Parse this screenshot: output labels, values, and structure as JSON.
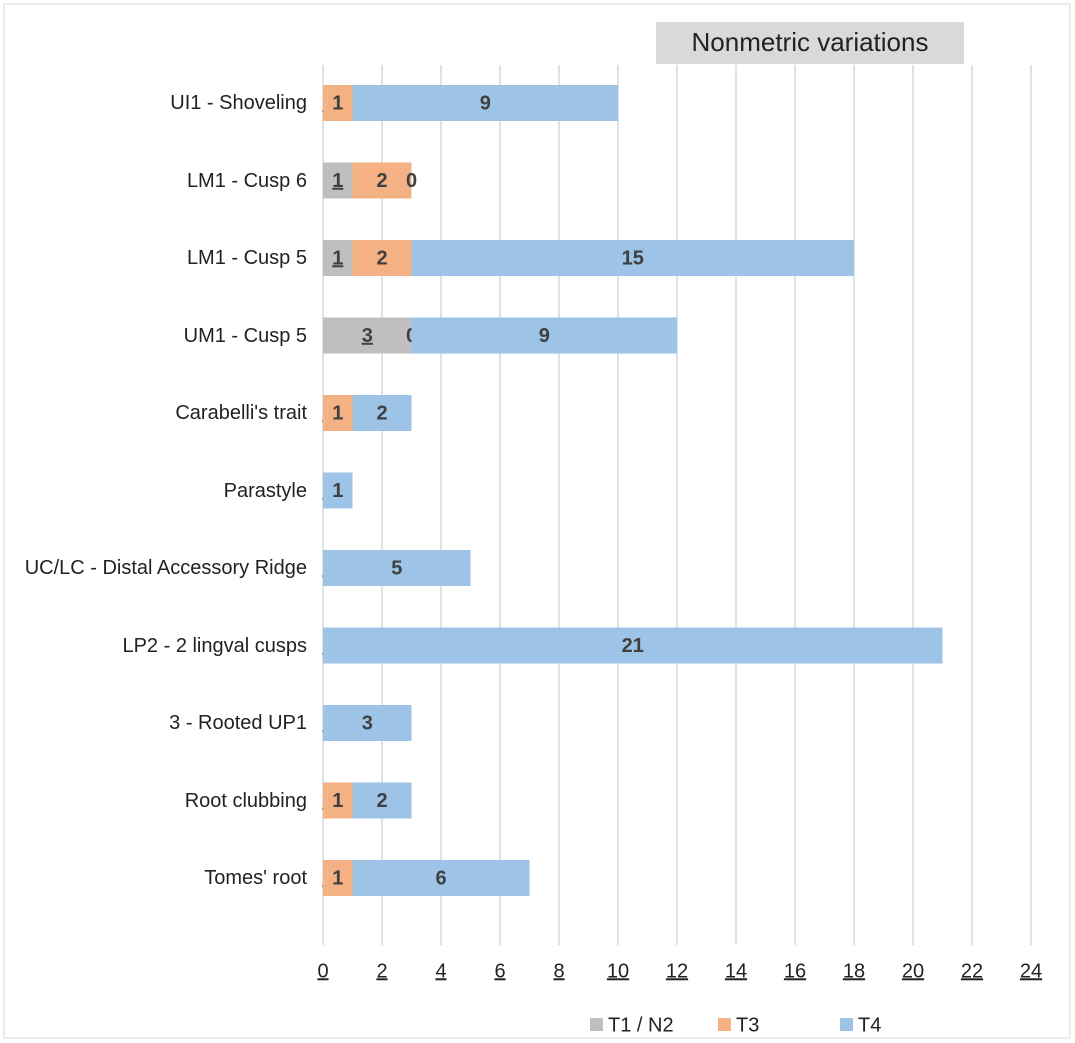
{
  "chart_data": {
    "type": "bar",
    "orientation": "horizontal",
    "stacked": true,
    "title": "Nonmetric variations",
    "categories": [
      "UI1 - Shoveling",
      "LM1 - Cusp 6",
      "LM1 - Cusp 5",
      "UM1 - Cusp 5",
      "Carabelli's trait",
      "Parastyle",
      "UC/LC - Distal Accessory Ridge",
      "LP2 -  2 lingval cusps",
      "3 - Rooted UP1",
      "Root clubbing",
      "Tomes' root"
    ],
    "series": [
      {
        "name": "T1 / N2",
        "color": "#bfbfbf",
        "values": [
          0,
          1,
          1,
          3,
          0,
          0,
          0,
          0,
          0,
          0,
          0
        ]
      },
      {
        "name": "T3",
        "color": "#f4b183",
        "values": [
          1,
          2,
          2,
          0,
          1,
          null,
          null,
          null,
          null,
          1,
          1
        ]
      },
      {
        "name": "T4",
        "color": "#9dc3e6",
        "values": [
          9,
          0,
          15,
          9,
          2,
          1,
          5,
          21,
          3,
          2,
          6
        ]
      }
    ],
    "xlim": [
      0,
      24
    ],
    "xticks": [
      0,
      2,
      4,
      6,
      8,
      10,
      12,
      14,
      16,
      18,
      20,
      22,
      24
    ],
    "grid": true,
    "legend": "bottom"
  }
}
